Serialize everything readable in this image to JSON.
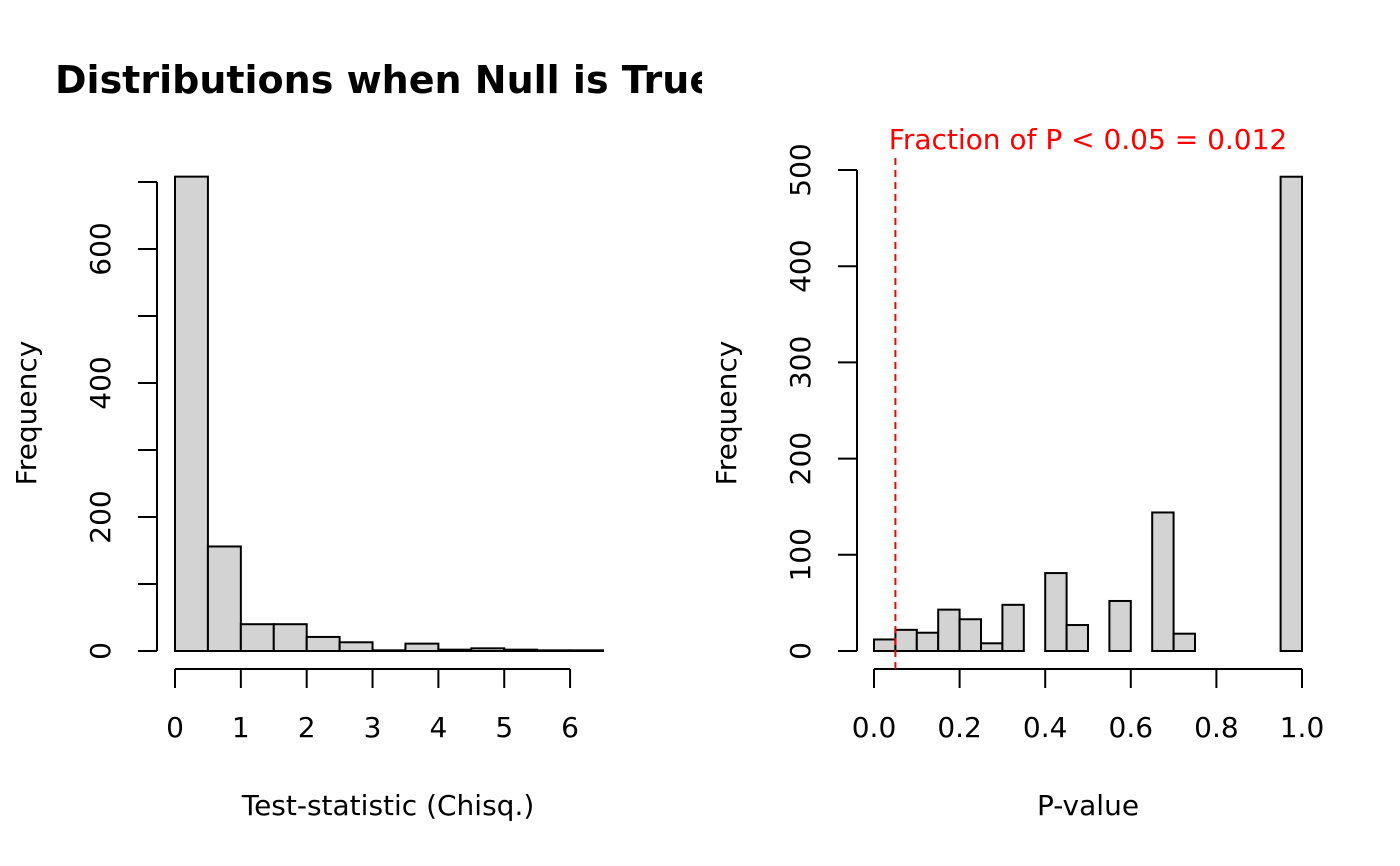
{
  "colors": {
    "bar_fill": "#d3d3d3",
    "bar_stroke": "#000000",
    "annotation": "#ff0000",
    "background": "#ffffff"
  },
  "chart_data": [
    {
      "type": "bar",
      "subtype": "histogram",
      "title": "Distributions when Null is True",
      "xlabel": "Test-statistic (Chisq.)",
      "ylabel": "Frequency",
      "bin_edges": [
        0,
        0.5,
        1,
        1.5,
        2,
        2.5,
        3,
        3.5,
        4,
        4.5,
        5,
        5.5,
        6,
        6.5
      ],
      "values": [
        708,
        156,
        40,
        40,
        21,
        13,
        1,
        11,
        2,
        4,
        2,
        1,
        1
      ],
      "xlim": [
        0,
        6.5
      ],
      "ylim": [
        0,
        700
      ],
      "x_ticks": [
        0,
        1,
        2,
        3,
        4,
        5,
        6
      ],
      "x_tick_labels": [
        "0",
        "1",
        "2",
        "3",
        "4",
        "5",
        "6"
      ],
      "y_ticks": [
        0,
        100,
        200,
        300,
        400,
        500,
        600,
        700
      ],
      "y_tick_labels": [
        "0",
        "",
        "200",
        "",
        "400",
        "",
        "600",
        ""
      ],
      "grid": false,
      "legend": "none"
    },
    {
      "type": "bar",
      "subtype": "histogram",
      "title": "",
      "xlabel": "P-value",
      "ylabel": "Frequency",
      "bin_edges": [
        0,
        0.05,
        0.1,
        0.15,
        0.2,
        0.25,
        0.3,
        0.35,
        0.4,
        0.45,
        0.5,
        0.55,
        0.6,
        0.65,
        0.7,
        0.75,
        0.8,
        0.85,
        0.9,
        0.95,
        1.0
      ],
      "values": [
        12,
        22,
        19,
        43,
        33,
        8,
        48,
        0,
        81,
        27,
        0,
        52,
        0,
        144,
        18,
        0,
        0,
        0,
        0,
        493
      ],
      "xlim": [
        0,
        1
      ],
      "ylim": [
        0,
        500
      ],
      "x_ticks": [
        0,
        0.2,
        0.4,
        0.6,
        0.8,
        1.0
      ],
      "x_tick_labels": [
        "0.0",
        "0.2",
        "0.4",
        "0.6",
        "0.8",
        "1.0"
      ],
      "y_ticks": [
        0,
        100,
        200,
        300,
        400,
        500
      ],
      "y_tick_labels": [
        "0",
        "100",
        "200",
        "300",
        "400",
        "500"
      ],
      "reference_line": {
        "x": 0.05,
        "style": "dashed",
        "color": "#ff0000"
      },
      "annotation": "Fraction of P < 0.05 = 0.012",
      "grid": false,
      "legend": "none"
    }
  ]
}
